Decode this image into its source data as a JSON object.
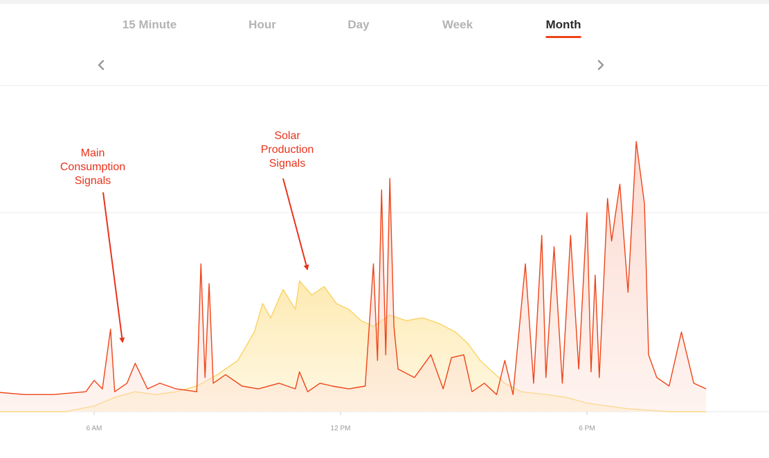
{
  "tabs": [
    {
      "label": "15 Minute",
      "active": false
    },
    {
      "label": "Hour",
      "active": false
    },
    {
      "label": "Day",
      "active": false
    },
    {
      "label": "Week",
      "active": false
    },
    {
      "label": "Month",
      "active": true
    }
  ],
  "nav": {
    "prev_icon": "chevron-left-icon",
    "next_icon": "chevron-right-icon"
  },
  "annotations": {
    "consumption": [
      "Main",
      "Consumption",
      "Signals"
    ],
    "solar": [
      "Solar",
      "Production",
      "Signals"
    ]
  },
  "colors": {
    "accent": "#f0441c",
    "consumption_line": "#ee4418",
    "consumption_fill": "#fde3da",
    "solar_line": "#fbd46a",
    "solar_fill": "#fde9ad",
    "annotation": "#e8321a"
  },
  "chart_data": {
    "type": "line",
    "x_unit": "hour of day",
    "xlim": [
      2.2,
      20.9
    ],
    "ylim": [
      0,
      1
    ],
    "y_unit": "relative power (unlabeled)",
    "gridlines_y": [
      0.7
    ],
    "grid": true,
    "legend": "none",
    "x_ticks": [
      {
        "x": 6,
        "label": "6 AM"
      },
      {
        "x": 12,
        "label": "12 PM"
      },
      {
        "x": 18,
        "label": "6 PM"
      }
    ],
    "series": [
      {
        "name": "Main Consumption",
        "points": [
          [
            2.2,
            0.06
          ],
          [
            2.8,
            0.06
          ],
          [
            3.5,
            0.07
          ],
          [
            4.3,
            0.06
          ],
          [
            5.0,
            0.06
          ],
          [
            5.8,
            0.07
          ],
          [
            6.0,
            0.11
          ],
          [
            6.2,
            0.08
          ],
          [
            6.4,
            0.29
          ],
          [
            6.5,
            0.07
          ],
          [
            6.8,
            0.1
          ],
          [
            7.0,
            0.17
          ],
          [
            7.3,
            0.08
          ],
          [
            7.6,
            0.1
          ],
          [
            8.0,
            0.08
          ],
          [
            8.5,
            0.07
          ],
          [
            8.6,
            0.52
          ],
          [
            8.7,
            0.12
          ],
          [
            8.8,
            0.45
          ],
          [
            8.9,
            0.1
          ],
          [
            9.2,
            0.13
          ],
          [
            9.6,
            0.09
          ],
          [
            10.0,
            0.08
          ],
          [
            10.5,
            0.1
          ],
          [
            10.9,
            0.08
          ],
          [
            11.0,
            0.14
          ],
          [
            11.2,
            0.07
          ],
          [
            11.5,
            0.1
          ],
          [
            11.8,
            0.09
          ],
          [
            12.2,
            0.08
          ],
          [
            12.6,
            0.09
          ],
          [
            12.8,
            0.52
          ],
          [
            12.9,
            0.18
          ],
          [
            13.0,
            0.78
          ],
          [
            13.1,
            0.2
          ],
          [
            13.2,
            0.82
          ],
          [
            13.3,
            0.3
          ],
          [
            13.4,
            0.15
          ],
          [
            13.8,
            0.12
          ],
          [
            14.2,
            0.2
          ],
          [
            14.5,
            0.08
          ],
          [
            14.7,
            0.19
          ],
          [
            15.0,
            0.2
          ],
          [
            15.2,
            0.07
          ],
          [
            15.5,
            0.1
          ],
          [
            15.8,
            0.06
          ],
          [
            16.0,
            0.18
          ],
          [
            16.2,
            0.06
          ],
          [
            16.5,
            0.52
          ],
          [
            16.7,
            0.1
          ],
          [
            16.9,
            0.62
          ],
          [
            17.0,
            0.12
          ],
          [
            17.2,
            0.58
          ],
          [
            17.4,
            0.1
          ],
          [
            17.6,
            0.62
          ],
          [
            17.8,
            0.15
          ],
          [
            18.0,
            0.7
          ],
          [
            18.1,
            0.14
          ],
          [
            18.2,
            0.48
          ],
          [
            18.3,
            0.12
          ],
          [
            18.5,
            0.75
          ],
          [
            18.6,
            0.6
          ],
          [
            18.8,
            0.8
          ],
          [
            19.0,
            0.42
          ],
          [
            19.2,
            0.95
          ],
          [
            19.4,
            0.73
          ],
          [
            19.5,
            0.2
          ],
          [
            19.7,
            0.12
          ],
          [
            20.0,
            0.09
          ],
          [
            20.3,
            0.28
          ],
          [
            20.6,
            0.1
          ],
          [
            20.9,
            0.08
          ]
        ]
      },
      {
        "name": "Solar Production",
        "points": [
          [
            2.2,
            0.0
          ],
          [
            4.5,
            0.0
          ],
          [
            5.3,
            0.0
          ],
          [
            6.0,
            0.02
          ],
          [
            6.5,
            0.05
          ],
          [
            7.0,
            0.07
          ],
          [
            7.5,
            0.06
          ],
          [
            8.0,
            0.07
          ],
          [
            8.5,
            0.09
          ],
          [
            9.0,
            0.13
          ],
          [
            9.5,
            0.18
          ],
          [
            9.9,
            0.28
          ],
          [
            10.1,
            0.38
          ],
          [
            10.3,
            0.33
          ],
          [
            10.6,
            0.43
          ],
          [
            10.9,
            0.36
          ],
          [
            11.0,
            0.46
          ],
          [
            11.3,
            0.41
          ],
          [
            11.6,
            0.44
          ],
          [
            11.9,
            0.38
          ],
          [
            12.2,
            0.36
          ],
          [
            12.5,
            0.32
          ],
          [
            12.8,
            0.3
          ],
          [
            13.2,
            0.34
          ],
          [
            13.6,
            0.32
          ],
          [
            14.0,
            0.33
          ],
          [
            14.4,
            0.31
          ],
          [
            14.8,
            0.28
          ],
          [
            15.1,
            0.24
          ],
          [
            15.4,
            0.18
          ],
          [
            15.7,
            0.14
          ],
          [
            16.0,
            0.1
          ],
          [
            16.4,
            0.07
          ],
          [
            17.0,
            0.06
          ],
          [
            17.5,
            0.05
          ],
          [
            18.0,
            0.03
          ],
          [
            18.5,
            0.02
          ],
          [
            19.0,
            0.01
          ],
          [
            20.0,
            0.0
          ],
          [
            20.9,
            0.0
          ]
        ]
      }
    ]
  }
}
